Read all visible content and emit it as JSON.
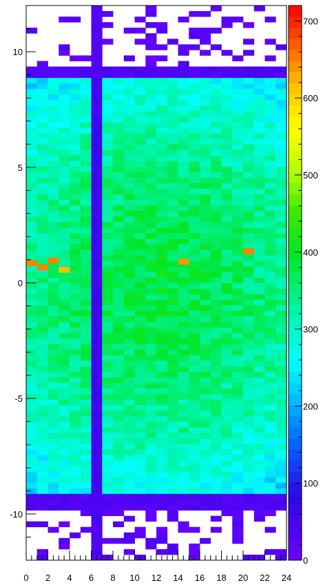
{
  "chart_data": {
    "type": "heatmap",
    "title": "",
    "xlabel": "",
    "ylabel": "",
    "x_range": [
      0,
      24
    ],
    "y_range": [
      -12,
      12
    ],
    "x_bins": 24,
    "y_bins": 100,
    "z_range": [
      0,
      720
    ],
    "x_ticks": [
      "0",
      "2",
      "4",
      "6",
      "8",
      "10",
      "12",
      "14",
      "16",
      "18",
      "20",
      "22",
      "24"
    ],
    "y_ticks": [
      "-10",
      "-5",
      "0",
      "5",
      "10"
    ],
    "z_ticks": [
      "0",
      "100",
      "200",
      "300",
      "400",
      "500",
      "600",
      "700"
    ],
    "colormap": "rainbow",
    "grid": false,
    "features": {
      "occupied_y": [
        -9.2,
        8.8
      ],
      "low_count_edge_rows": [
        [
          -9.8,
          -9.2
        ],
        [
          8.8,
          9.4
        ]
      ],
      "dead_column_x": [
        6,
        7
      ],
      "dead_column_value": 50,
      "core_value": 380,
      "edge_value": 230,
      "hot_cells": [
        {
          "x": 0,
          "y": 0.75,
          "value": 650
        },
        {
          "x": 1,
          "y": 0.55,
          "value": 650
        },
        {
          "x": 2,
          "y": 0.85,
          "value": 650
        },
        {
          "x": 3,
          "y": 0.45,
          "value": 620
        },
        {
          "x": 14,
          "y": 0.8,
          "value": 640
        },
        {
          "x": 20,
          "y": 1.25,
          "value": 650
        }
      ]
    }
  }
}
